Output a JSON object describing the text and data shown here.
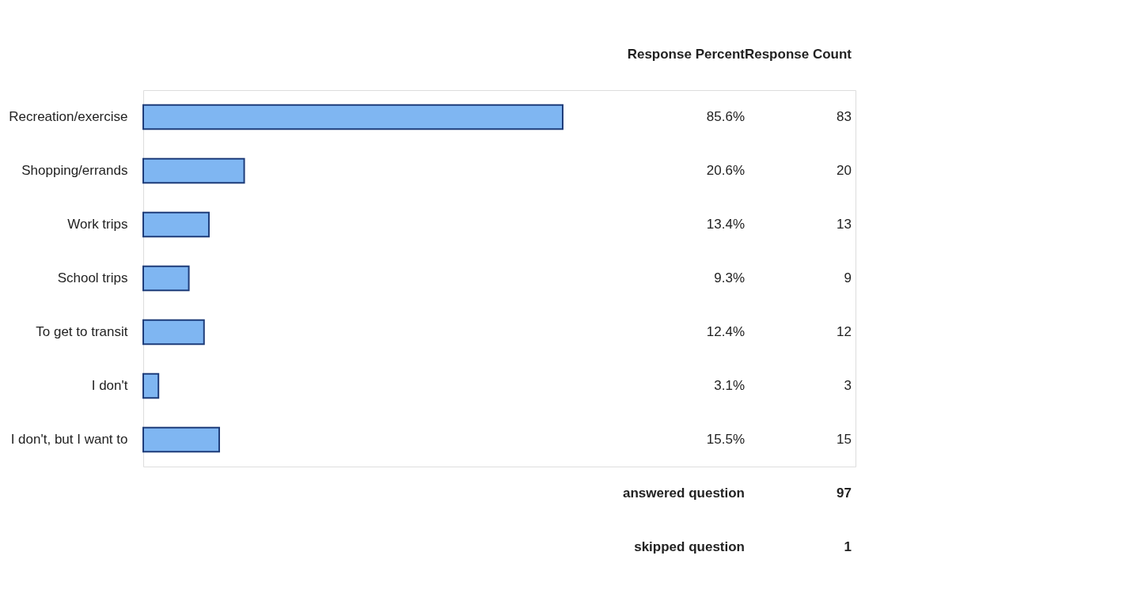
{
  "chart_data": {
    "type": "bar",
    "orientation": "horizontal",
    "categories": [
      "Recreation/exercise",
      "Shopping/errands",
      "Work trips",
      "School trips",
      "To get to transit",
      "I don't",
      "I don't, but I want to"
    ],
    "values": [
      85.6,
      20.6,
      13.4,
      9.3,
      12.4,
      3.1,
      15.5
    ],
    "value_labels": [
      "85.6%",
      "20.6%",
      "13.4%",
      "9.3%",
      "12.4%",
      "3.1%",
      "15.5%"
    ],
    "color": "#7fb6f2",
    "tick_labels": "y",
    "grid": false,
    "annotations": [
      "Response Percent",
      "Response Count",
      "83",
      "20",
      "13",
      "9",
      "12",
      "3",
      "15",
      "answered question",
      "97",
      "skipped question",
      "1"
    ]
  }
}
